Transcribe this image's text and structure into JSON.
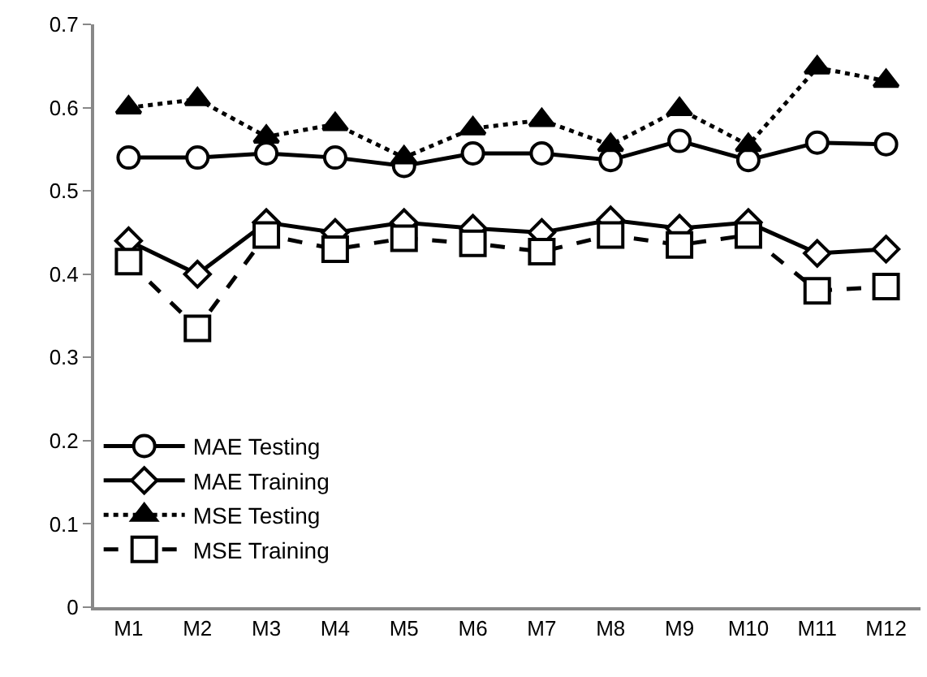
{
  "chart_data": {
    "type": "line",
    "categories": [
      "M1",
      "M2",
      "M3",
      "M4",
      "M5",
      "M6",
      "M7",
      "M8",
      "M9",
      "M10",
      "M11",
      "M12"
    ],
    "ylim": [
      0,
      0.7
    ],
    "yticks": [
      0,
      0.1,
      0.2,
      0.3,
      0.4,
      0.5,
      0.6,
      0.7
    ],
    "legend": "bottom",
    "series": [
      {
        "name": "MAE Testing",
        "color": "#000000",
        "marker": "circle",
        "line_style": "solid",
        "values": [
          0.54,
          0.54,
          0.545,
          0.54,
          0.53,
          0.545,
          0.545,
          0.537,
          0.56,
          0.537,
          0.558,
          0.556
        ]
      },
      {
        "name": "MAE Training",
        "color": "#000000",
        "marker": "diamond",
        "line_style": "solid",
        "values": [
          0.44,
          0.4,
          0.462,
          0.45,
          0.462,
          0.455,
          0.45,
          0.465,
          0.455,
          0.462,
          0.425,
          0.43
        ]
      },
      {
        "name": "MSE Testing",
        "color": "#000000",
        "marker": "triangle",
        "line_style": "dotted",
        "values": [
          0.6,
          0.61,
          0.565,
          0.58,
          0.54,
          0.575,
          0.585,
          0.555,
          0.598,
          0.555,
          0.648,
          0.632
        ]
      },
      {
        "name": "MSE Training",
        "color": "#000000",
        "marker": "square",
        "line_style": "dashed",
        "values": [
          0.415,
          0.335,
          0.447,
          0.43,
          0.443,
          0.437,
          0.427,
          0.447,
          0.435,
          0.447,
          0.38,
          0.385
        ]
      }
    ]
  }
}
